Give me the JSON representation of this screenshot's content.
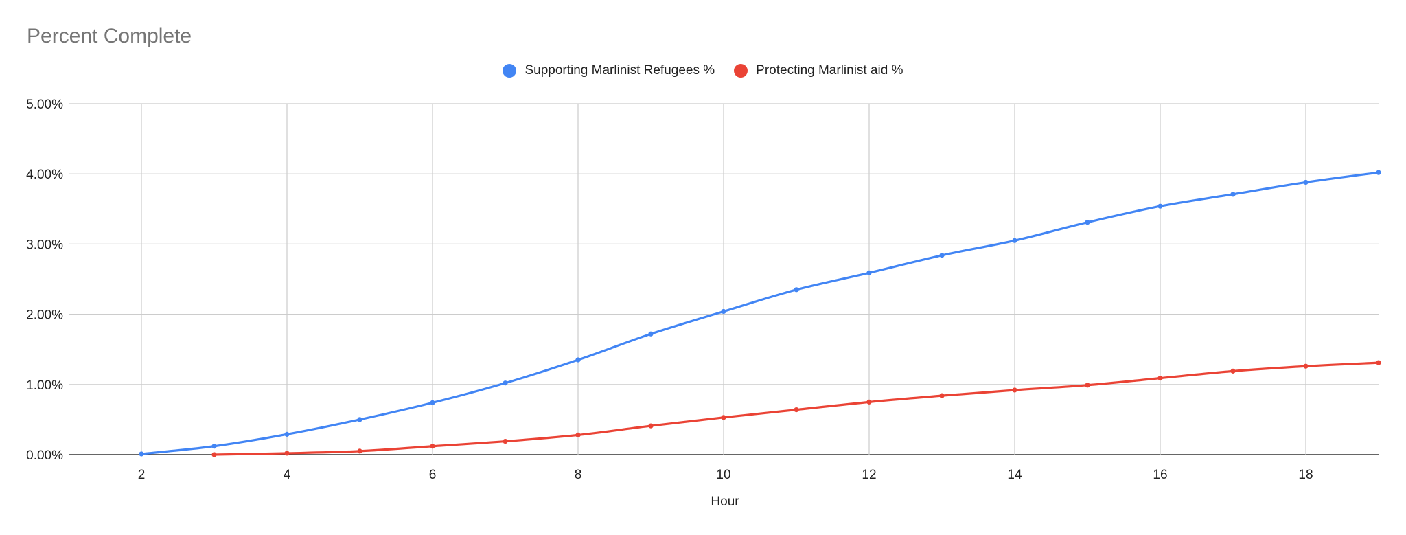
{
  "chart_data": {
    "type": "line",
    "title": "Percent Complete",
    "xlabel": "Hour",
    "ylabel": "",
    "xlim": [
      1,
      19
    ],
    "ylim": [
      0,
      5
    ],
    "x_ticks": [
      2,
      4,
      6,
      8,
      10,
      12,
      14,
      16,
      18
    ],
    "y_ticks": [
      0,
      1,
      2,
      3,
      4,
      5
    ],
    "y_tick_labels": [
      "0.00%",
      "1.00%",
      "2.00%",
      "3.00%",
      "4.00%",
      "5.00%"
    ],
    "grid": true,
    "legend_position": "top",
    "series": [
      {
        "name": "Supporting Marlinist Refugees %",
        "color": "#4285F4",
        "x": [
          2,
          3,
          4,
          5,
          6,
          7,
          8,
          9,
          10,
          11,
          12,
          13,
          14,
          15,
          16,
          17,
          18,
          19
        ],
        "values": [
          0.01,
          0.12,
          0.29,
          0.5,
          0.74,
          1.02,
          1.35,
          1.72,
          2.04,
          2.35,
          2.59,
          2.84,
          3.05,
          3.31,
          3.54,
          3.71,
          3.88,
          4.02
        ]
      },
      {
        "name": "Protecting Marlinist aid %",
        "color": "#EA4335",
        "x": [
          3,
          4,
          5,
          6,
          7,
          8,
          9,
          10,
          11,
          12,
          13,
          14,
          15,
          16,
          17,
          18,
          19
        ],
        "values": [
          0.0,
          0.02,
          0.05,
          0.12,
          0.19,
          0.28,
          0.41,
          0.53,
          0.64,
          0.75,
          0.84,
          0.92,
          0.99,
          1.09,
          1.19,
          1.26,
          1.31
        ]
      }
    ]
  }
}
